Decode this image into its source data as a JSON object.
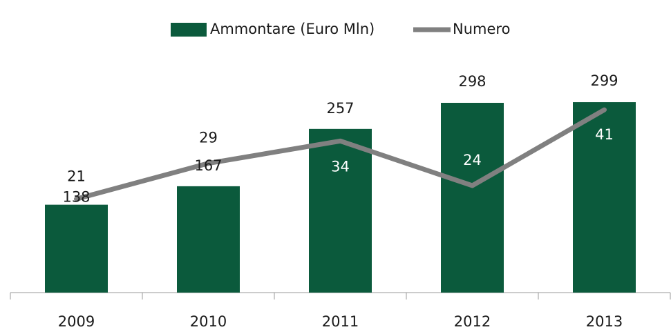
{
  "chart_data": {
    "type": "bar+line",
    "categories": [
      "2009",
      "2010",
      "2011",
      "2012",
      "2013"
    ],
    "series": [
      {
        "name": "Ammontare (Euro Mln)",
        "type": "bar",
        "color": "#0b5a3c",
        "values": [
          138,
          167,
          257,
          298,
          299
        ]
      },
      {
        "name": "Numero",
        "type": "line",
        "axis": "y2",
        "color": "#808080",
        "values": [
          21,
          29,
          34,
          24,
          41
        ]
      }
    ],
    "ylim": [
      0,
      350
    ],
    "y2lim": [
      0,
      50
    ],
    "legend": "top"
  }
}
